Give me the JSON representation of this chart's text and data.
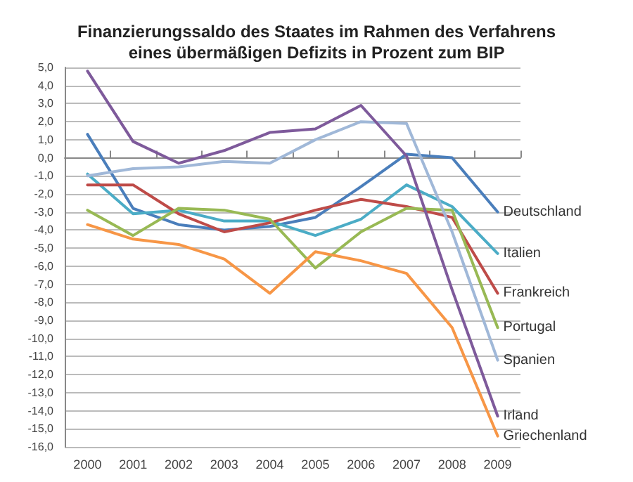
{
  "chart_data": {
    "type": "line",
    "title": "Finanzierungssaldo des Staates im Rahmen des Verfahrens\neines übermäßigen Defizits in Prozent zum BIP",
    "categories": [
      "2000",
      "2001",
      "2002",
      "2003",
      "2004",
      "2005",
      "2006",
      "2007",
      "2008",
      "2009"
    ],
    "series": [
      {
        "name": "Deutschland",
        "color": "#4a7ebb",
        "values": [
          1.3,
          -2.8,
          -3.7,
          -4.0,
          -3.8,
          -3.3,
          -1.6,
          0.2,
          0.0,
          -3.0
        ]
      },
      {
        "name": "Italien",
        "color": "#4bacc6",
        "values": [
          -0.9,
          -3.1,
          -2.9,
          -3.5,
          -3.5,
          -4.3,
          -3.4,
          -1.5,
          -2.7,
          -5.3
        ]
      },
      {
        "name": "Frankreich",
        "color": "#be4b48",
        "values": [
          -1.5,
          -1.5,
          -3.1,
          -4.1,
          -3.6,
          -2.9,
          -2.3,
          -2.7,
          -3.3,
          -7.5
        ]
      },
      {
        "name": "Portugal",
        "color": "#98b954",
        "values": [
          -2.9,
          -4.3,
          -2.8,
          -2.9,
          -3.4,
          -6.1,
          -4.1,
          -2.8,
          -2.9,
          -9.4
        ]
      },
      {
        "name": "Spanien",
        "color": "#a0b8d8",
        "values": [
          -1.0,
          -0.6,
          -0.5,
          -0.2,
          -0.3,
          1.0,
          2.0,
          1.9,
          -4.1,
          -11.2
        ]
      },
      {
        "name": "Irland",
        "color": "#7e5a9b",
        "values": [
          4.8,
          0.9,
          -0.3,
          0.4,
          1.4,
          1.6,
          2.9,
          0.1,
          -7.3,
          -14.3
        ]
      },
      {
        "name": "Griechenland",
        "color": "#f79646",
        "values": [
          -3.7,
          -4.5,
          -4.8,
          -5.6,
          -7.5,
          -5.2,
          -5.7,
          -6.4,
          -9.4,
          -15.4
        ]
      }
    ],
    "ylim": [
      -16,
      5
    ],
    "yticks": [
      {
        "value": 5,
        "label": "5,0"
      },
      {
        "value": 4,
        "label": "4,0"
      },
      {
        "value": 3,
        "label": "3,0"
      },
      {
        "value": 2,
        "label": "2,0"
      },
      {
        "value": 1,
        "label": "1,0"
      },
      {
        "value": 0,
        "label": "0,0"
      },
      {
        "value": -1,
        "label": "-1,0"
      },
      {
        "value": -2,
        "label": "-2,0"
      },
      {
        "value": -3,
        "label": "-3,0"
      },
      {
        "value": -4,
        "label": "-4,0"
      },
      {
        "value": -5,
        "label": "-5,0"
      },
      {
        "value": -6,
        "label": "-6,0"
      },
      {
        "value": -7,
        "label": "-7,0"
      },
      {
        "value": -8,
        "label": "-8,0"
      },
      {
        "value": -9,
        "label": "-9,0"
      },
      {
        "value": -10,
        "label": "-10,0"
      },
      {
        "value": -11,
        "label": "-11,0"
      },
      {
        "value": -12,
        "label": "-12,0"
      },
      {
        "value": -13,
        "label": "-13,0"
      },
      {
        "value": -14,
        "label": "-14,0"
      },
      {
        "value": -15,
        "label": "-15,0"
      },
      {
        "value": -16,
        "label": "-16,0"
      }
    ],
    "grid": "y",
    "legend": false,
    "marker": "none",
    "line_style": "solid"
  }
}
